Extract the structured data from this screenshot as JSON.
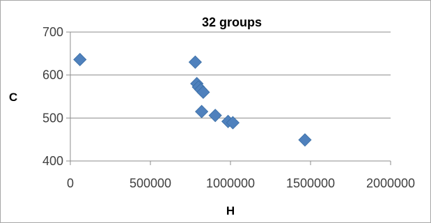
{
  "chart_data": {
    "type": "scatter",
    "title": "32 groups",
    "xlabel": "H",
    "ylabel": "C",
    "xlim": [
      0,
      2000000
    ],
    "ylim": [
      400,
      700
    ],
    "x_ticks": [
      0,
      500000,
      1000000,
      1500000,
      2000000
    ],
    "y_ticks": [
      400,
      500,
      600,
      700
    ],
    "x_tick_labels": [
      "0",
      "500000",
      "1000000",
      "1500000",
      "2000000"
    ],
    "y_tick_labels": [
      "400",
      "500",
      "600",
      "700"
    ],
    "grid": "horizontal",
    "legend": "none",
    "marker": "diamond",
    "series": [
      {
        "color": "#4f81bd",
        "points": [
          {
            "x": 60000,
            "y": 636
          },
          {
            "x": 780000,
            "y": 630
          },
          {
            "x": 790000,
            "y": 580
          },
          {
            "x": 800000,
            "y": 572
          },
          {
            "x": 815000,
            "y": 566
          },
          {
            "x": 830000,
            "y": 560
          },
          {
            "x": 820000,
            "y": 515
          },
          {
            "x": 905000,
            "y": 506
          },
          {
            "x": 985000,
            "y": 492
          },
          {
            "x": 1015000,
            "y": 489
          },
          {
            "x": 1465000,
            "y": 449
          }
        ]
      }
    ]
  }
}
